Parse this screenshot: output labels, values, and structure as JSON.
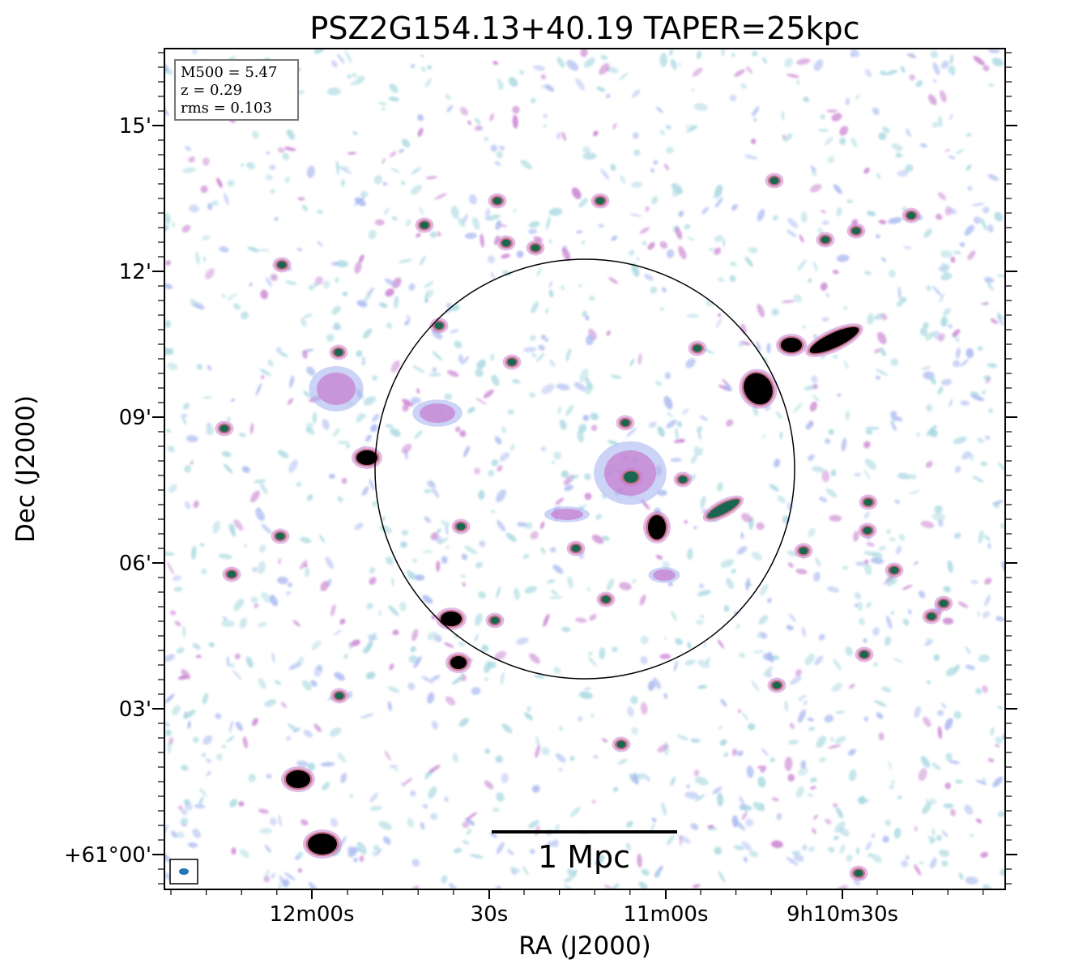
{
  "chart_data": {
    "type": "radio-map",
    "title": "PSZ2G154.13+40.19 TAPER=25kpc",
    "xlabel": "RA (J2000)",
    "ylabel": "Dec (J2000)",
    "x_ticks": [
      "12m00s",
      "30s",
      "11m00s",
      "9h10m30s"
    ],
    "y_ticks": [
      "+61°00'",
      "03'",
      "06'",
      "09'",
      "12'",
      "15'"
    ],
    "info_box": [
      "M500 = 5.47",
      "z = 0.29",
      "rms = 0.103"
    ],
    "scale_bar_label": "1 Mpc",
    "colors": {
      "faint": "#a8d8e0",
      "low": "#a8b8f0",
      "mid": "#c880d0",
      "high": "#c87088",
      "core": "#1a6650",
      "saturated": "#000000",
      "beam": "#1f77b4"
    }
  }
}
